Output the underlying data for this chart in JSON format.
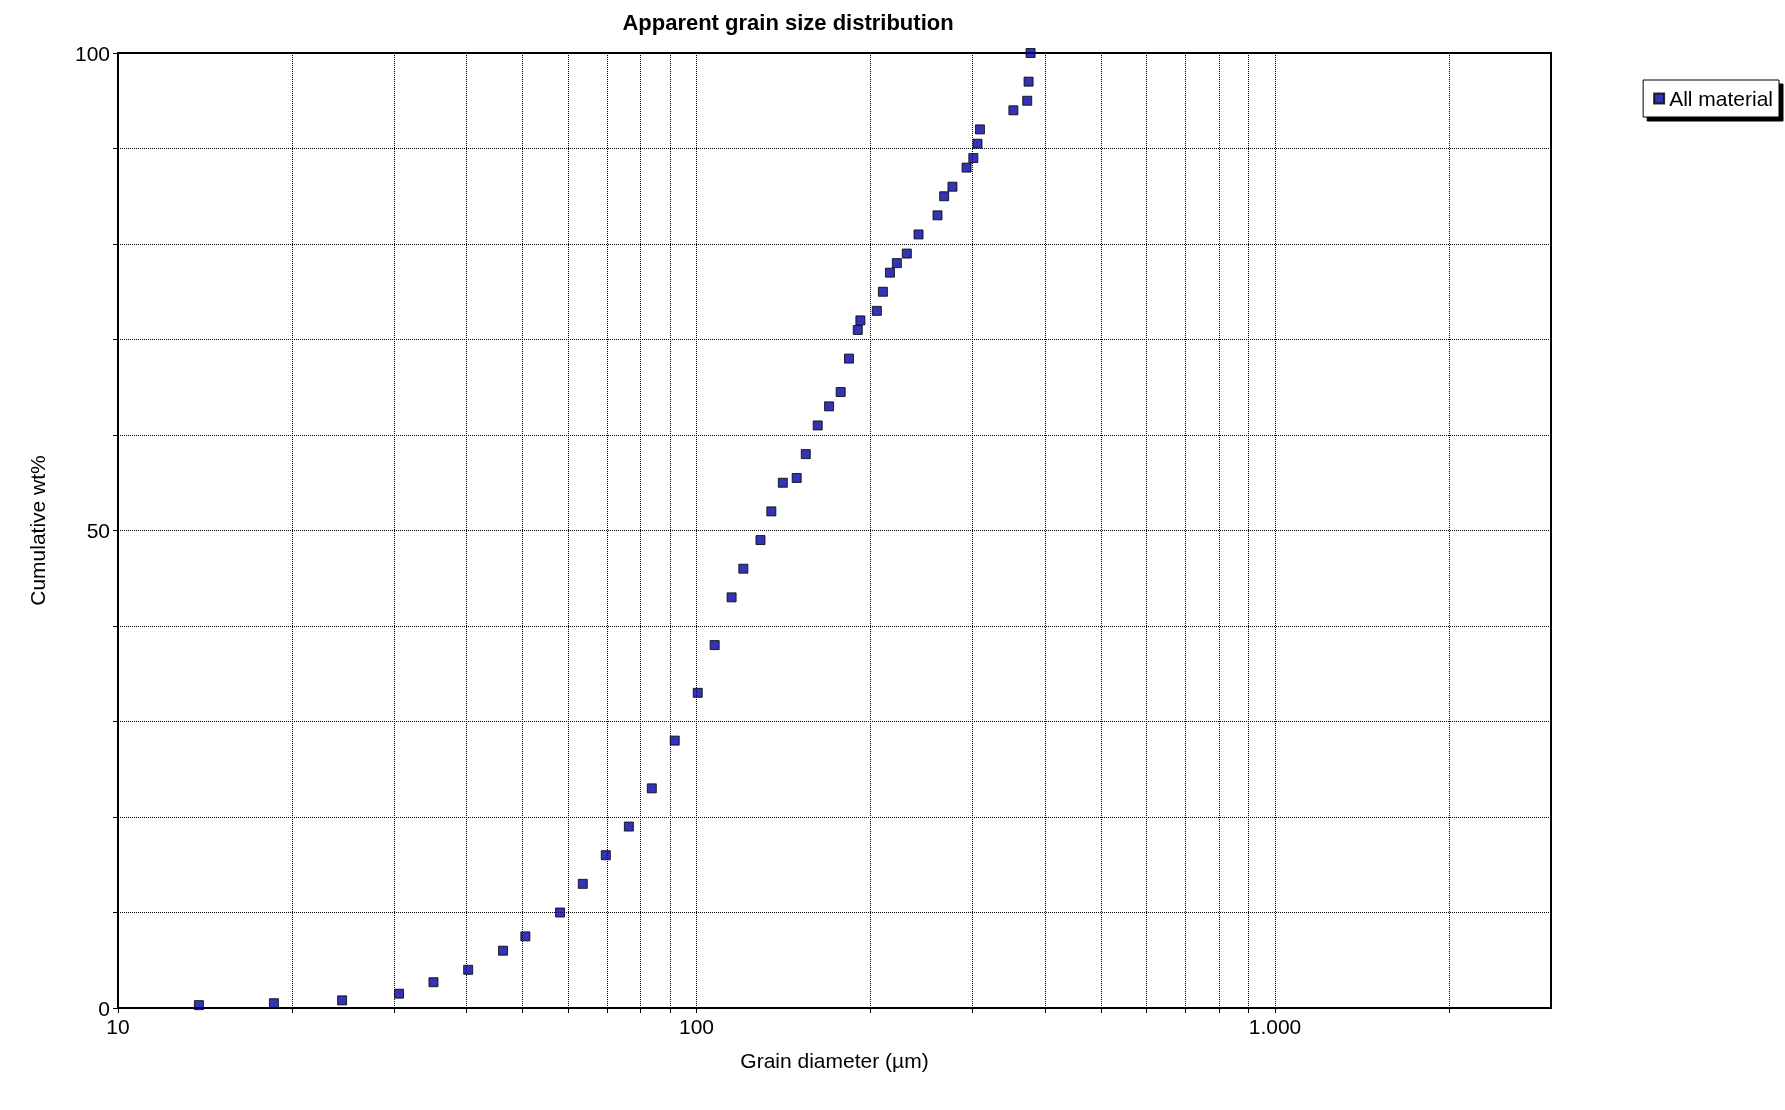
{
  "chart_data": {
    "type": "scatter",
    "title": "Apparent grain size distribution",
    "xlabel": "Grain diameter (µm)",
    "ylabel": "Cumulative wt%",
    "log": "x",
    "grid": true,
    "legend": "top right",
    "marker": "square",
    "xlim": [
      10,
      3000
    ],
    "ylim": [
      0,
      100
    ],
    "xticks": [
      10,
      {
        "value": 20,
        "label": null
      },
      {
        "value": 30,
        "label": null
      },
      {
        "value": 40,
        "label": null
      },
      {
        "value": 50,
        "label": null
      },
      {
        "value": 60,
        "label": null
      },
      {
        "value": 70,
        "label": null
      },
      {
        "value": 80,
        "label": null
      },
      {
        "value": 90,
        "label": null
      },
      100,
      {
        "value": 200,
        "label": null
      },
      {
        "value": 300,
        "label": null
      },
      {
        "value": 400,
        "label": null
      },
      {
        "value": 500,
        "label": null
      },
      {
        "value": 600,
        "label": null
      },
      {
        "value": 700,
        "label": null
      },
      {
        "value": 800,
        "label": null
      },
      {
        "value": 900,
        "label": null
      },
      {
        "value": 1000,
        "label": "1.000"
      },
      {
        "value": 2000,
        "label": null
      }
    ],
    "yticks": [
      0,
      {
        "value": 10,
        "label": null
      },
      {
        "value": 20,
        "label": null
      },
      {
        "value": 30,
        "label": null
      },
      {
        "value": 40,
        "label": null
      },
      50,
      {
        "value": 60,
        "label": null
      },
      {
        "value": 70,
        "label": null
      },
      {
        "value": 80,
        "label": null
      },
      {
        "value": 90,
        "label": null
      },
      100
    ],
    "series": [
      {
        "name": "All material",
        "color": "#0000a0",
        "x": [
          13.8,
          18.6,
          24.4,
          30.6,
          35.1,
          40.3,
          46.3,
          50.6,
          58.1,
          63.6,
          69.7,
          76.4,
          83.7,
          91.7,
          100.5,
          107.5,
          115,
          120.5,
          129,
          134.7,
          141,
          149,
          154.5,
          162,
          169.5,
          177.5,
          183.5,
          190,
          192,
          205,
          210,
          216,
          222,
          231,
          242,
          261,
          268,
          277,
          293,
          301,
          306,
          309,
          353,
          373,
          375,
          378
        ],
        "values": [
          0.3,
          0.5,
          0.8,
          1.5,
          2.7,
          4,
          6,
          7.5,
          10,
          13,
          16,
          19,
          23,
          28,
          33,
          38,
          43,
          46,
          49,
          52,
          55,
          55.5,
          58,
          61,
          63,
          64.5,
          68,
          71,
          72,
          73,
          75,
          77,
          78,
          79,
          81,
          83,
          85,
          86,
          88,
          89,
          90.5,
          92,
          94,
          95,
          97,
          100
        ]
      }
    ]
  }
}
